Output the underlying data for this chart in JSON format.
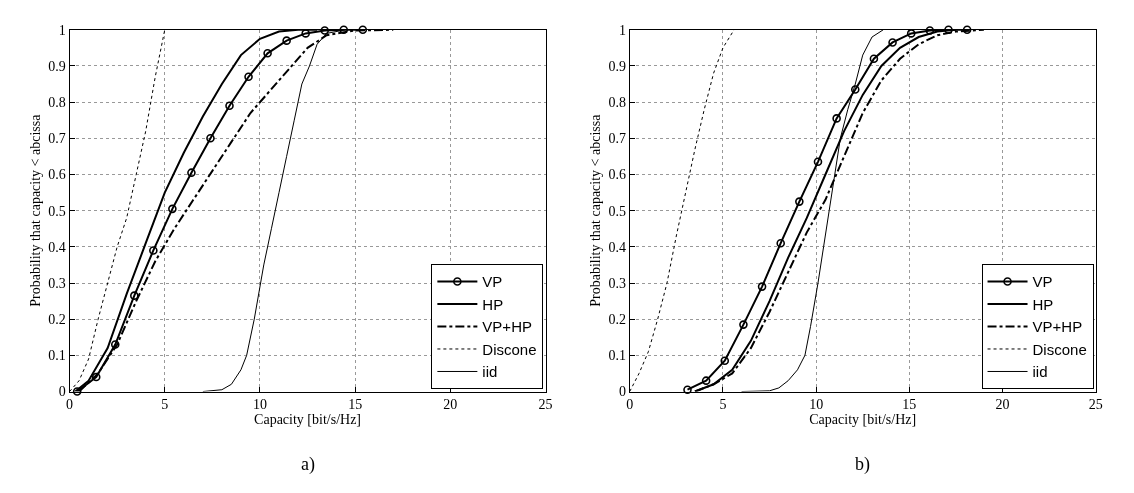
{
  "chart_data": [
    {
      "type": "line",
      "xlabel": "Capacity [bit/s/Hz]",
      "ylabel": "Probability that capacity < abcissa",
      "annotations": [
        "a)"
      ],
      "xlim": [
        0,
        25
      ],
      "xticks": [
        0,
        5,
        10,
        15,
        20,
        25
      ],
      "ylim": [
        0,
        1
      ],
      "yticks": [
        0,
        0.1,
        0.2,
        0.3,
        0.4,
        0.5,
        0.6,
        0.7,
        0.8,
        0.9,
        1
      ],
      "grid": true,
      "legend": "bottom right",
      "series": [
        {
          "name": "VP",
          "color": "#000000",
          "marker": "circle",
          "line_style": "solid",
          "x": [
            0.4,
            1.4,
            2.4,
            3.4,
            4.4,
            5.4,
            6.4,
            7.4,
            8.4,
            9.4,
            10.4,
            11.4,
            12.4,
            13.4,
            14.4,
            15.4
          ],
          "values": [
            0,
            0.04,
            0.13,
            0.265,
            0.39,
            0.505,
            0.605,
            0.7,
            0.79,
            0.87,
            0.935,
            0.97,
            0.99,
            0.998,
            1,
            1
          ]
        },
        {
          "name": "HP",
          "color": "#000000",
          "marker": "none",
          "line_style": "solid",
          "x": [
            0.3,
            1,
            2,
            3,
            4,
            5,
            6,
            7,
            8,
            9,
            10,
            11,
            12,
            13
          ],
          "values": [
            0,
            0.03,
            0.12,
            0.27,
            0.41,
            0.55,
            0.66,
            0.76,
            0.85,
            0.93,
            0.975,
            0.995,
            1,
            1
          ]
        },
        {
          "name": "VP+HP",
          "color": "#000000",
          "marker": "none",
          "line_style": "dashdot",
          "x": [
            0.5,
            1.5,
            2.5,
            3.5,
            4.5,
            5.5,
            6.5,
            7.5,
            8.5,
            9.5,
            10.5,
            11.5,
            12.5,
            13.5,
            15,
            17
          ],
          "values": [
            0,
            0.05,
            0.13,
            0.25,
            0.36,
            0.45,
            0.53,
            0.61,
            0.69,
            0.77,
            0.83,
            0.89,
            0.95,
            0.985,
            0.998,
            1
          ]
        },
        {
          "name": "Discone",
          "color": "#000000",
          "marker": "none",
          "line_style": "dotted",
          "x": [
            0,
            0.5,
            1,
            1.5,
            2,
            2.5,
            3,
            3.5,
            4,
            4.5,
            5
          ],
          "values": [
            0,
            0.03,
            0.09,
            0.2,
            0.3,
            0.4,
            0.48,
            0.6,
            0.72,
            0.87,
            1
          ]
        },
        {
          "name": "iid",
          "color": "#000000",
          "marker": "none",
          "line_style": "solid",
          "x": [
            7,
            8,
            8.5,
            9,
            9.3,
            9.7,
            10.2,
            10.6,
            11,
            11.4,
            11.8,
            12.2,
            12.6,
            13,
            13.5,
            14.5
          ],
          "values": [
            0,
            0.005,
            0.02,
            0.06,
            0.1,
            0.2,
            0.35,
            0.45,
            0.55,
            0.65,
            0.75,
            0.85,
            0.9,
            0.96,
            0.99,
            1
          ]
        }
      ]
    },
    {
      "type": "line",
      "xlabel": "Capacity [bit/s/Hz]",
      "ylabel": "Probability that capacity < abcissa",
      "annotations": [
        "b)"
      ],
      "xlim": [
        0,
        25
      ],
      "xticks": [
        0,
        5,
        10,
        15,
        20,
        25
      ],
      "ylim": [
        0,
        1
      ],
      "yticks": [
        0,
        0.1,
        0.2,
        0.3,
        0.4,
        0.5,
        0.6,
        0.7,
        0.8,
        0.9,
        1
      ],
      "grid": true,
      "legend": "bottom right",
      "series": [
        {
          "name": "VP",
          "color": "#000000",
          "marker": "circle",
          "line_style": "solid",
          "x": [
            3.1,
            4.1,
            5.1,
            6.1,
            7.1,
            8.1,
            9.1,
            10.1,
            11.1,
            12.1,
            13.1,
            14.1,
            15.1,
            16.1,
            17.1,
            18.1
          ],
          "values": [
            0.005,
            0.03,
            0.085,
            0.185,
            0.29,
            0.41,
            0.525,
            0.635,
            0.755,
            0.835,
            0.92,
            0.965,
            0.99,
            0.998,
            1,
            1
          ]
        },
        {
          "name": "HP",
          "color": "#000000",
          "marker": "none",
          "line_style": "solid",
          "x": [
            3.5,
            4.5,
            5.5,
            6.5,
            7.5,
            8.5,
            9.5,
            10.5,
            11.5,
            12.5,
            13.5,
            14.5,
            15.5,
            16.5,
            17.5
          ],
          "values": [
            0,
            0.02,
            0.06,
            0.14,
            0.25,
            0.37,
            0.48,
            0.6,
            0.72,
            0.82,
            0.9,
            0.95,
            0.98,
            0.995,
            1
          ]
        },
        {
          "name": "VP+HP",
          "color": "#000000",
          "marker": "none",
          "line_style": "dashdot",
          "x": [
            3.5,
            4.5,
            5.5,
            6.5,
            7.5,
            8.5,
            9.5,
            10.5,
            11.5,
            12.5,
            13.5,
            14.5,
            15.5,
            16.5,
            17.5,
            19
          ],
          "values": [
            0,
            0.02,
            0.05,
            0.12,
            0.22,
            0.33,
            0.44,
            0.53,
            0.65,
            0.77,
            0.86,
            0.92,
            0.96,
            0.985,
            0.995,
            1
          ]
        },
        {
          "name": "Discone",
          "color": "#000000",
          "marker": "none",
          "line_style": "dotted",
          "x": [
            0,
            0.5,
            1,
            1.5,
            2,
            2.5,
            3,
            3.5,
            4,
            4.5,
            5,
            5.6
          ],
          "values": [
            0,
            0.05,
            0.11,
            0.2,
            0.3,
            0.43,
            0.55,
            0.67,
            0.78,
            0.88,
            0.95,
            1
          ]
        },
        {
          "name": "iid",
          "color": "#000000",
          "marker": "none",
          "line_style": "solid",
          "x": [
            6,
            7.5,
            8,
            8.5,
            9,
            9.4,
            9.7,
            10.1,
            10.4,
            10.7,
            11,
            11.3,
            11.7,
            12.1,
            12.5,
            13,
            13.6
          ],
          "values": [
            0,
            0.002,
            0.01,
            0.03,
            0.06,
            0.1,
            0.18,
            0.3,
            0.4,
            0.5,
            0.6,
            0.7,
            0.78,
            0.85,
            0.93,
            0.98,
            1
          ]
        }
      ]
    }
  ]
}
